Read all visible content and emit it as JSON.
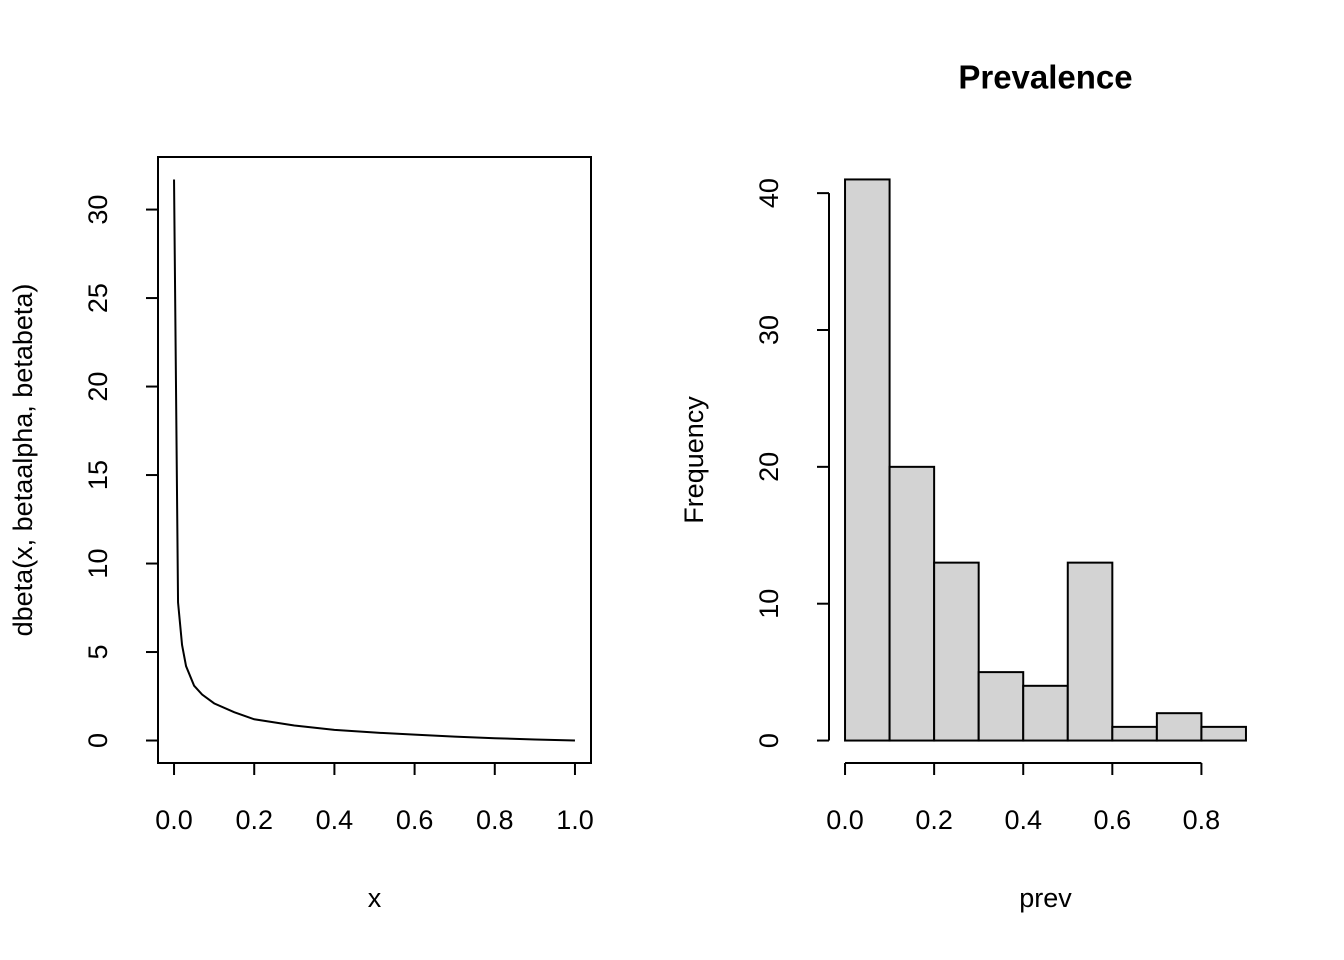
{
  "chart_data": [
    {
      "type": "line",
      "xlabel": "x",
      "ylabel": "dbeta(x, betaalpha, betabeta)",
      "x": [
        0,
        0.01,
        0.02,
        0.03,
        0.05,
        0.07,
        0.1,
        0.15,
        0.2,
        0.3,
        0.4,
        0.5,
        0.6,
        0.7,
        0.8,
        0.9,
        1.0
      ],
      "values": [
        31.7,
        7.8,
        5.4,
        4.2,
        3.1,
        2.6,
        2.1,
        1.6,
        1.2,
        0.85,
        0.6,
        0.45,
        0.33,
        0.22,
        0.13,
        0.06,
        0
      ],
      "color": "#000000",
      "xlim": [
        -0.04,
        1.04
      ],
      "ylim": [
        -1.27,
        32.97
      ],
      "xticks": [
        {
          "value": 0,
          "label": "0.0"
        },
        0.2,
        0.4,
        0.6,
        0.8,
        {
          "value": 1,
          "label": "1.0"
        }
      ],
      "yticks": [
        0,
        5,
        10,
        15,
        20,
        25,
        30
      ],
      "box": true
    },
    {
      "type": "histogram",
      "title": "Prevalence",
      "xlabel": "prev",
      "ylabel": "Frequency",
      "bins": [
        0,
        0.1,
        0.2,
        0.3,
        0.4,
        0.5,
        0.6,
        0.7,
        0.8,
        0.9
      ],
      "values": [
        41,
        20,
        13,
        5,
        4,
        13,
        1,
        2,
        1
      ],
      "color": "#d3d3d3",
      "xlim": [
        -0.036,
        0.936
      ],
      "ylim": [
        -1.64,
        42.64
      ],
      "xticks": [
        {
          "value": 0,
          "label": "0.0"
        },
        0.2,
        0.4,
        0.6,
        0.8
      ],
      "yticks": [
        0,
        10,
        20,
        30,
        40
      ],
      "box": false
    }
  ]
}
